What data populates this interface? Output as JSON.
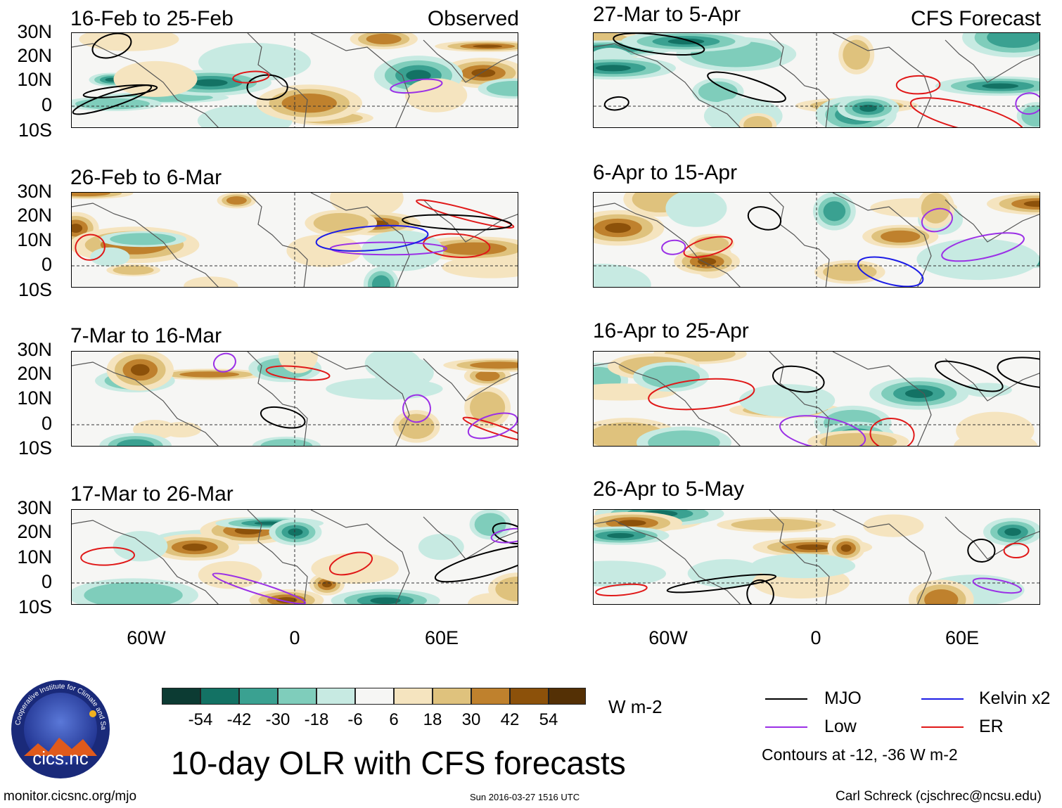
{
  "panels_left_header": "Observed",
  "panels_right_header": "CFS Forecast",
  "observed_panels": [
    {
      "title": "16-Feb to 25-Feb"
    },
    {
      "title": "26-Feb to 6-Mar"
    },
    {
      "title": "7-Mar to 16-Mar"
    },
    {
      "title": "17-Mar to 26-Mar"
    }
  ],
  "forecast_panels": [
    {
      "title": "27-Mar to 5-Apr"
    },
    {
      "title": "6-Apr to 15-Apr"
    },
    {
      "title": "16-Apr to 25-Apr"
    },
    {
      "title": "26-Apr to 5-May"
    }
  ],
  "y_axis_labels": [
    "30N",
    "20N",
    "10N",
    "0",
    "10S"
  ],
  "x_axis_labels": [
    "60W",
    "0",
    "60E"
  ],
  "colorbar": {
    "labels": [
      "-54",
      "-42",
      "-30",
      "-18",
      "-6",
      "6",
      "18",
      "30",
      "42",
      "54"
    ],
    "colors": [
      "#0c3b33",
      "#137264",
      "#3aa191",
      "#7fcdbb",
      "#c7eae2",
      "#f6f6f4",
      "#f5e4bf",
      "#dfc27d",
      "#bf812d",
      "#8c510a",
      "#543005"
    ],
    "units": "W m-2"
  },
  "main_title": "10-day OLR with CFS forecasts",
  "legend": {
    "items": [
      {
        "label": "MJO",
        "color": "#000000"
      },
      {
        "label": "Kelvin x2",
        "color": "#1c1ce6"
      },
      {
        "label": "Low",
        "color": "#9b30e6"
      },
      {
        "label": "ER",
        "color": "#e01818"
      }
    ],
    "note": "Contours at -12, -36 W m-2"
  },
  "logo": {
    "text": "cics.nc",
    "ring_text": "Cooperative Institute for Climate and Satellites"
  },
  "footer": {
    "url": "monitor.cicsnc.org/mjo",
    "timestamp": "Sun 2016-03-27 1516 UTC",
    "author": "Carl Schreck (cjschrec@ncsu.edu)"
  }
}
